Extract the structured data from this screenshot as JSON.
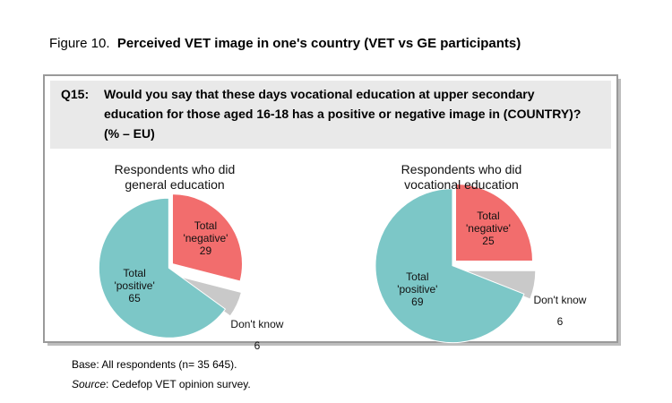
{
  "figure": {
    "label": "Figure 10.",
    "title": "Perceived VET image in one's country (VET vs GE participants)"
  },
  "question": {
    "id": "Q15:",
    "text": "Would you say that these days vocational education at upper secondary education for those aged 16-18 has a positive or negative image in (COUNTRY)? (% – EU)"
  },
  "notes": {
    "base": "Base: All respondents (n= 35 645).",
    "source_label": "Source",
    "source_text": ": Cedefop VET opinion survey."
  },
  "chart_data": [
    {
      "type": "pie",
      "title": "Respondents who did general education",
      "categories": [
        "Total 'positive'",
        "Total 'negative'",
        "Don't know"
      ],
      "values": [
        65,
        29,
        6
      ],
      "colors": [
        "#7cc7c7",
        "#f26d6d",
        "#c9c9c9"
      ]
    },
    {
      "type": "pie",
      "title": "Respondents who did vocational education",
      "categories": [
        "Total 'positive'",
        "Total 'negative'",
        "Don't know"
      ],
      "values": [
        69,
        25,
        6
      ],
      "colors": [
        "#7cc7c7",
        "#f26d6d",
        "#c9c9c9"
      ]
    }
  ]
}
